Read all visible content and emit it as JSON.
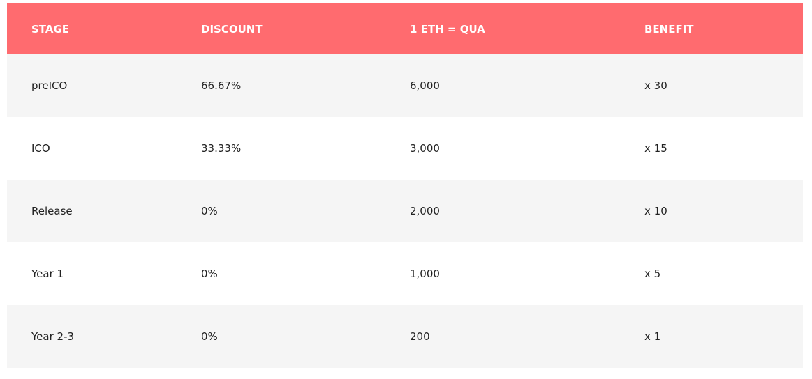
{
  "table": {
    "header": [
      "STAGE",
      "DISCOUNT",
      "1 ETH = QUA",
      "BENEFIT"
    ],
    "rows": [
      [
        "preICO",
        "66.67%",
        "6,000",
        "x 30"
      ],
      [
        "ICO",
        "33.33%",
        "3,000",
        "x 15"
      ],
      [
        "Release",
        "0%",
        "2,000",
        "x 10"
      ],
      [
        "Year 1",
        "0%",
        "1,000",
        "x 5"
      ],
      [
        "Year 2-3",
        "0%",
        "200",
        "x 1"
      ]
    ]
  }
}
